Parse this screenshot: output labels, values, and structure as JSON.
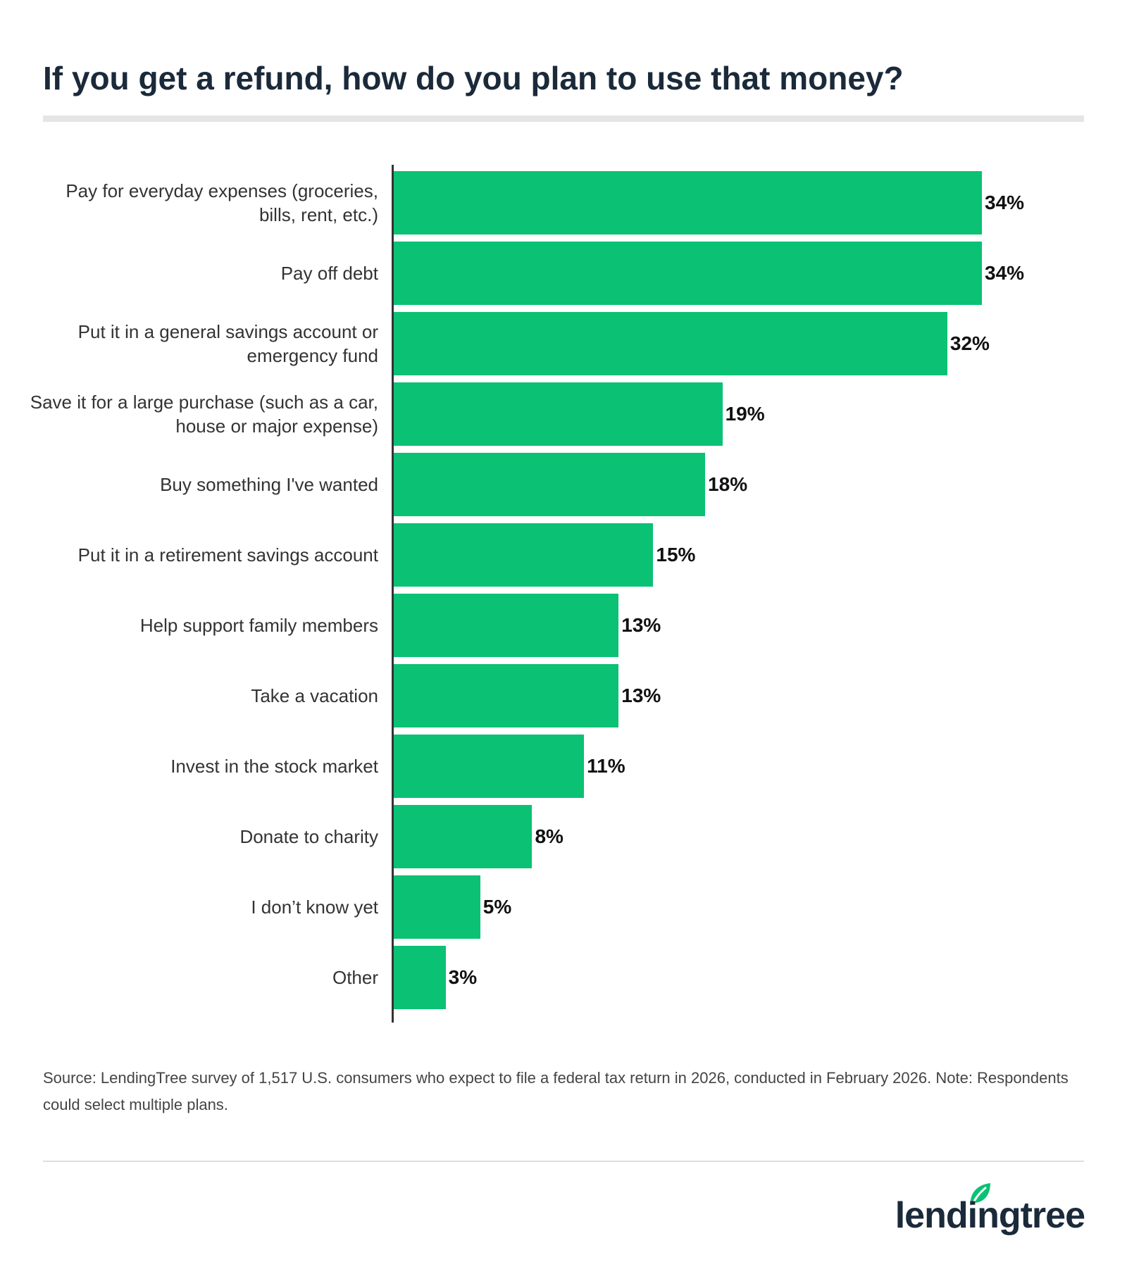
{
  "chart_data": {
    "type": "bar",
    "orientation": "horizontal",
    "title": "If you get a refund, how do you plan to use that money?",
    "categories": [
      "Pay for everyday expenses (groceries, bills, rent, etc.)",
      "Pay off debt",
      "Put it in a general savings account or emergency fund",
      "Save it for a large purchase (such as a car, house or major expense)",
      "Buy something I've wanted",
      "Put it in a retirement savings account",
      "Help support family members",
      "Take a vacation",
      "Invest in the stock market",
      "Donate to charity",
      "I don’t know yet",
      "Other"
    ],
    "values": [
      34,
      34,
      32,
      19,
      18,
      15,
      13,
      13,
      11,
      8,
      5,
      3
    ],
    "value_labels": [
      "34%",
      "34%",
      "32%",
      "19%",
      "18%",
      "15%",
      "13%",
      "13%",
      "11%",
      "8%",
      "5%",
      "3%"
    ],
    "color": "#0bc174",
    "source": "Source: LendingTree survey of 1,517 U.S. consumers who expect to file a federal tax return in 2026, conducted in February 2026. Note: Respondents could select multiple plans.",
    "logo": "lendingtree"
  }
}
